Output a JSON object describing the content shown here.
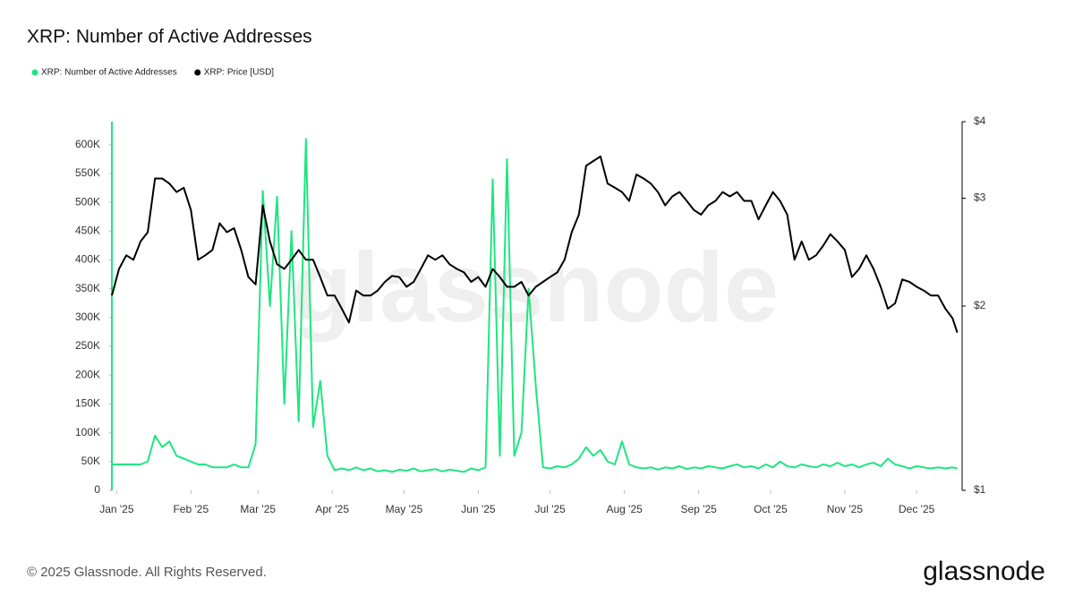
{
  "chart_data": {
    "type": "line",
    "title": "XRP: Number of Active Addresses",
    "x": [
      -2,
      1,
      4,
      7,
      10,
      13,
      16,
      19,
      22,
      25,
      28,
      31,
      34,
      37,
      40,
      43,
      46,
      49,
      52,
      55,
      58,
      61,
      64,
      67,
      70,
      73,
      76,
      79,
      82,
      85,
      88,
      91,
      94,
      97,
      100,
      103,
      106,
      109,
      112,
      115,
      118,
      121,
      124,
      127,
      130,
      133,
      136,
      139,
      142,
      145,
      148,
      151,
      154,
      157,
      160,
      163,
      166,
      169,
      172,
      175,
      178,
      181,
      184,
      187,
      190,
      193,
      196,
      199,
      202,
      205,
      208,
      211,
      214,
      217,
      220,
      223,
      226,
      229,
      232,
      235,
      238,
      241,
      244,
      247,
      250,
      253,
      256,
      259,
      262,
      265,
      268,
      271,
      274,
      277,
      280,
      283,
      286,
      289,
      292,
      295,
      298,
      301,
      304,
      307,
      310,
      313,
      316,
      319,
      322,
      325,
      328,
      331,
      334,
      337,
      340,
      343,
      346,
      349,
      351
    ],
    "xlim": [
      -2,
      353
    ],
    "xticks": [
      {
        "value": 0,
        "label": "Jan '25"
      },
      {
        "value": 31,
        "label": "Feb '25"
      },
      {
        "value": 59,
        "label": "Mar '25"
      },
      {
        "value": 90,
        "label": "Apr '25"
      },
      {
        "value": 120,
        "label": "May '25"
      },
      {
        "value": 151,
        "label": "Jun '25"
      },
      {
        "value": 181,
        "label": "Jul '25"
      },
      {
        "value": 212,
        "label": "Aug '25"
      },
      {
        "value": 243,
        "label": "Sep '25"
      },
      {
        "value": 273,
        "label": "Oct '25"
      },
      {
        "value": 304,
        "label": "Nov '25"
      },
      {
        "value": 334,
        "label": "Dec '25"
      }
    ],
    "ylim": [
      0,
      640000
    ],
    "yticks": [
      0,
      {
        "value": 50000,
        "label": "50K"
      },
      {
        "value": 100000,
        "label": "100K"
      },
      {
        "value": 150000,
        "label": "150K"
      },
      {
        "value": 200000,
        "label": "200K"
      },
      {
        "value": 250000,
        "label": "250K"
      },
      {
        "value": 300000,
        "label": "300K"
      },
      {
        "value": 350000,
        "label": "350K"
      },
      {
        "value": 400000,
        "label": "400K"
      },
      {
        "value": 450000,
        "label": "450K"
      },
      {
        "value": 500000,
        "label": "500K"
      },
      {
        "value": 550000,
        "label": "550K"
      },
      {
        "value": 600000,
        "label": "600K"
      }
    ],
    "y2lim": [
      1,
      4
    ],
    "y2ticks": [
      {
        "value": 1,
        "label": "$1"
      },
      {
        "value": 2,
        "label": "$2"
      },
      {
        "value": 3,
        "label": "$3"
      },
      {
        "value": 4,
        "label": "$4"
      }
    ],
    "y2log": true,
    "legend": "top-left",
    "watermark": "glassnode",
    "series": [
      {
        "name": "XRP: Number of Active Addresses",
        "color": "#1ee67f",
        "values": [
          45000,
          45000,
          45000,
          45000,
          45000,
          50000,
          95000,
          75000,
          85000,
          60000,
          55000,
          50000,
          45000,
          45000,
          40000,
          40000,
          40000,
          45000,
          40000,
          40000,
          80000,
          520000,
          320000,
          510000,
          150000,
          450000,
          120000,
          610000,
          110000,
          190000,
          60000,
          35000,
          38000,
          35000,
          40000,
          35000,
          38000,
          33000,
          35000,
          32000,
          36000,
          34000,
          38000,
          33000,
          35000,
          37000,
          33000,
          36000,
          34000,
          32000,
          38000,
          35000,
          40000,
          540000,
          60000,
          575000,
          60000,
          100000,
          350000,
          180000,
          40000,
          38000,
          42000,
          40000,
          45000,
          55000,
          75000,
          60000,
          70000,
          50000,
          45000,
          85000,
          45000,
          40000,
          38000,
          40000,
          36000,
          40000,
          38000,
          42000,
          37000,
          40000,
          38000,
          42000,
          40000,
          38000,
          42000,
          45000,
          40000,
          42000,
          38000,
          45000,
          40000,
          50000,
          42000,
          40000,
          45000,
          42000,
          40000,
          45000,
          42000,
          48000,
          42000,
          45000,
          40000,
          45000,
          48000,
          42000,
          55000,
          45000,
          42000,
          38000,
          42000,
          40000,
          38000,
          40000,
          38000,
          40000,
          38000
        ]
      },
      {
        "name": "XRP: Price [USD]",
        "color": "#000000",
        "axis": "y2",
        "values": [
          2.08,
          2.3,
          2.42,
          2.38,
          2.55,
          2.64,
          3.23,
          3.23,
          3.17,
          3.07,
          3.12,
          2.87,
          2.38,
          2.42,
          2.47,
          2.73,
          2.64,
          2.68,
          2.47,
          2.23,
          2.17,
          2.92,
          2.55,
          2.34,
          2.3,
          2.38,
          2.47,
          2.38,
          2.38,
          2.23,
          2.08,
          2.08,
          1.98,
          1.88,
          2.12,
          2.08,
          2.08,
          2.12,
          2.19,
          2.24,
          2.23,
          2.15,
          2.19,
          2.3,
          2.42,
          2.38,
          2.42,
          2.34,
          2.3,
          2.27,
          2.19,
          2.23,
          2.15,
          2.3,
          2.23,
          2.15,
          2.15,
          2.19,
          2.08,
          2.15,
          2.19,
          2.23,
          2.27,
          2.38,
          2.64,
          2.82,
          3.39,
          3.45,
          3.51,
          3.17,
          3.12,
          3.07,
          2.97,
          3.28,
          3.23,
          3.17,
          3.07,
          2.92,
          3.02,
          3.07,
          2.97,
          2.87,
          2.82,
          2.92,
          2.97,
          3.07,
          3.02,
          3.07,
          2.97,
          2.97,
          2.77,
          2.92,
          3.07,
          2.97,
          2.82,
          2.38,
          2.55,
          2.38,
          2.42,
          2.51,
          2.62,
          2.55,
          2.47,
          2.23,
          2.3,
          2.42,
          2.3,
          2.15,
          1.98,
          2.02,
          2.21,
          2.19,
          2.15,
          2.12,
          2.08,
          2.08,
          1.98,
          1.91,
          1.81
        ]
      }
    ]
  },
  "footer": {
    "copyright": "© 2025 Glassnode. All Rights Reserved.",
    "logo": "glassnode"
  }
}
